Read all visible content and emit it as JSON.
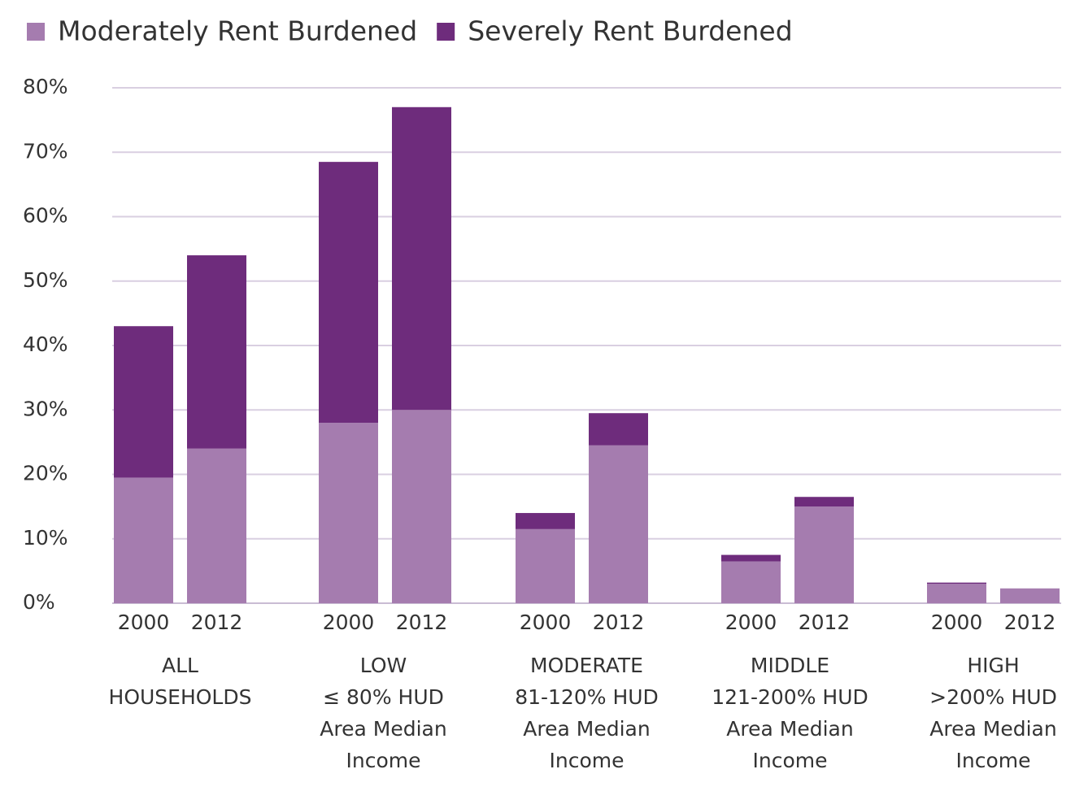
{
  "chart_data": {
    "type": "stacked-bar",
    "categories": [
      "2000",
      "2012",
      "2000",
      "2012",
      "2000",
      "2012",
      "2000",
      "2012",
      "2000",
      "2012"
    ],
    "groups": [
      {
        "label": [
          "ALL",
          "HOUSEHOLDS"
        ]
      },
      {
        "label": [
          "LOW",
          "≤ 80% HUD",
          "Area Median",
          "Income"
        ]
      },
      {
        "label": [
          "MODERATE",
          "81-120% HUD",
          "Area Median",
          "Income"
        ]
      },
      {
        "label": [
          "MIDDLE",
          "121-200% HUD",
          "Area Median",
          "Income"
        ]
      },
      {
        "label": [
          "HIGH",
          ">200% HUD",
          "Area Median",
          "Income"
        ]
      }
    ],
    "series": [
      {
        "name": "Moderately Rent Burdened",
        "color": "#a57caf",
        "values": [
          19.5,
          24,
          28,
          30,
          11.5,
          24.5,
          6.5,
          15,
          3,
          2.3
        ]
      },
      {
        "name": "Severely Rent Burdened",
        "color": "#6e2c7c",
        "values": [
          23.5,
          30,
          40.5,
          47,
          2.5,
          5,
          1,
          1.5,
          0.2,
          0
        ]
      }
    ],
    "ylim": [
      0,
      80
    ],
    "yticks": [
      {
        "value": 0,
        "label": "0%"
      },
      {
        "value": 10,
        "label": "10%"
      },
      {
        "value": 20,
        "label": "20%"
      },
      {
        "value": 30,
        "label": "30%"
      },
      {
        "value": 40,
        "label": "40%"
      },
      {
        "value": 50,
        "label": "50%"
      },
      {
        "value": 60,
        "label": "60%"
      },
      {
        "value": 70,
        "label": "70%"
      },
      {
        "value": 80,
        "label": "80%"
      }
    ],
    "grid": true,
    "legend": "top-left"
  }
}
